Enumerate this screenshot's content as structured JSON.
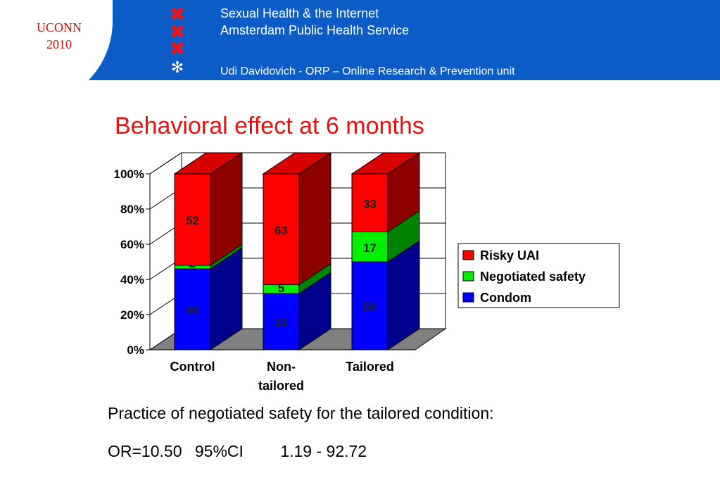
{
  "header": {
    "logo_line1": "UCONN",
    "logo_line2": "2010",
    "title_line1": "Sexual Health & the Internet",
    "title_line2": "Amsterdam Public Health Service",
    "subtitle": "Udi Davidovich - ORP – Online Research & Prevention unit",
    "icons": [
      "x-mark-icon",
      "x-mark-icon",
      "x-mark-icon",
      "star-of-life-icon"
    ],
    "colors": {
      "background": "#0b5cc6",
      "logo": "#d01010",
      "x_marks": "#e0191f"
    }
  },
  "slide_title": "Behavioral effect at 6 months",
  "chart_data": {
    "type": "bar",
    "stacked": true,
    "percent_stacked": true,
    "three_d": true,
    "categories": [
      "Control",
      "Non-\ntailored",
      "Tailored"
    ],
    "series": [
      {
        "name": "Condom",
        "values": [
          46,
          32,
          50
        ],
        "color": "#0000ff"
      },
      {
        "name": "Negotiated safety",
        "values": [
          2,
          5,
          17
        ],
        "color": "#00ee00"
      },
      {
        "name": "Risky UAI",
        "values": [
          52,
          63,
          33
        ],
        "color": "#ff0000"
      }
    ],
    "y_ticks": [
      "0%",
      "20%",
      "40%",
      "60%",
      "80%",
      "100%"
    ],
    "ylim": [
      0,
      100
    ],
    "grid": true,
    "legend": {
      "position": "right",
      "entries": [
        "Risky UAI",
        "Negotiated safety",
        "Condom"
      ]
    }
  },
  "footer": {
    "line1": "Practice of negotiated safety for the tailored condition:",
    "or_label": "OR=10.50",
    "ci_label": "95%CI",
    "ci_value": "1.19 - 92.72"
  }
}
